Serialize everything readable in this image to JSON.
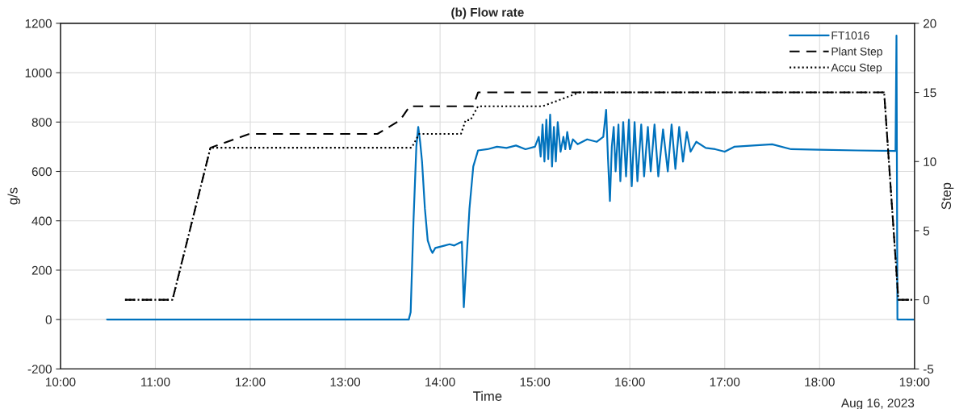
{
  "chart_data": {
    "type": "line",
    "title": "(b) Flow rate",
    "xlabel": "Time",
    "ylabel": "g/s",
    "y2label": "Step",
    "annotations": [
      "Aug 16, 2023"
    ],
    "xlim": [
      10,
      19
    ],
    "xticks": [
      {
        "value": 10,
        "label": "10:00"
      },
      {
        "value": 11,
        "label": "11:00"
      },
      {
        "value": 12,
        "label": "12:00"
      },
      {
        "value": 13,
        "label": "13:00"
      },
      {
        "value": 14,
        "label": "14:00"
      },
      {
        "value": 15,
        "label": "15:00"
      },
      {
        "value": 16,
        "label": "16:00"
      },
      {
        "value": 17,
        "label": "17:00"
      },
      {
        "value": 18,
        "label": "18:00"
      },
      {
        "value": 19,
        "label": "19:00"
      }
    ],
    "ylim": [
      -200,
      1200
    ],
    "yticks": [
      -200,
      0,
      200,
      400,
      600,
      800,
      1000,
      1200
    ],
    "y2lim": [
      -5,
      20
    ],
    "y2ticks": [
      -5,
      0,
      5,
      10,
      15,
      20
    ],
    "grid": true,
    "legend": "top right",
    "series": [
      {
        "name": "FT1016",
        "color": "#0072bd",
        "line_style": "solid",
        "x": [
          10.49,
          13.67,
          13.69,
          13.72,
          13.75,
          13.77,
          13.79,
          13.81,
          13.84,
          13.87,
          13.9,
          13.92,
          13.95,
          14.0,
          14.05,
          14.1,
          14.15,
          14.2,
          14.23,
          14.25,
          14.28,
          14.31,
          14.35,
          14.4,
          14.5,
          14.6,
          14.7,
          14.8,
          14.9,
          15.0,
          15.04,
          15.06,
          15.08,
          15.1,
          15.12,
          15.14,
          15.16,
          15.18,
          15.2,
          15.22,
          15.24,
          15.27,
          15.3,
          15.32,
          15.34,
          15.37,
          15.4,
          15.45,
          15.55,
          15.65,
          15.72,
          15.75,
          15.77,
          15.79,
          15.81,
          15.83,
          15.85,
          15.88,
          15.9,
          15.93,
          15.96,
          15.99,
          16.02,
          16.05,
          16.08,
          16.12,
          16.15,
          16.19,
          16.22,
          16.26,
          16.3,
          16.35,
          16.4,
          16.44,
          16.48,
          16.52,
          16.56,
          16.6,
          16.64,
          16.7,
          16.8,
          16.9,
          17.0,
          17.1,
          17.3,
          17.5,
          17.7,
          18.0,
          18.4,
          18.8,
          18.81,
          18.82,
          19.0
        ],
        "values": [
          0,
          0,
          30,
          400,
          700,
          780,
          720,
          640,
          450,
          320,
          285,
          270,
          290,
          295,
          300,
          305,
          300,
          310,
          315,
          50,
          250,
          450,
          620,
          685,
          690,
          700,
          695,
          705,
          690,
          700,
          740,
          660,
          790,
          640,
          810,
          650,
          830,
          620,
          780,
          640,
          800,
          680,
          740,
          690,
          760,
          690,
          730,
          710,
          730,
          720,
          740,
          850,
          650,
          480,
          700,
          780,
          600,
          790,
          560,
          800,
          580,
          810,
          540,
          800,
          560,
          790,
          580,
          780,
          600,
          790,
          580,
          770,
          600,
          790,
          610,
          780,
          640,
          760,
          680,
          720,
          695,
          690,
          680,
          700,
          705,
          710,
          690,
          688,
          685,
          683,
          1150,
          0,
          0
        ]
      },
      {
        "name": "Plant Step",
        "color": "#000000",
        "line_style": "dashed",
        "axis": "y2",
        "x": [
          10.68,
          11.18,
          11.58,
          11.99,
          13.34,
          13.58,
          13.68,
          14.35,
          14.4,
          18.68,
          18.83,
          18.98
        ],
        "values": [
          0,
          0,
          11,
          12,
          12,
          13,
          14,
          14,
          15,
          15,
          0,
          0
        ]
      },
      {
        "name": "Accu Step",
        "color": "#000000",
        "line_style": "dotted",
        "axis": "y2",
        "x": [
          10.68,
          11.18,
          11.58,
          13.7,
          13.78,
          14.22,
          14.27,
          14.32,
          14.4,
          15.08,
          15.47,
          18.68,
          18.83,
          18.98
        ],
        "values": [
          0,
          0,
          11,
          11,
          12,
          12,
          13,
          13,
          14,
          14,
          15,
          15,
          0,
          0
        ]
      }
    ]
  }
}
